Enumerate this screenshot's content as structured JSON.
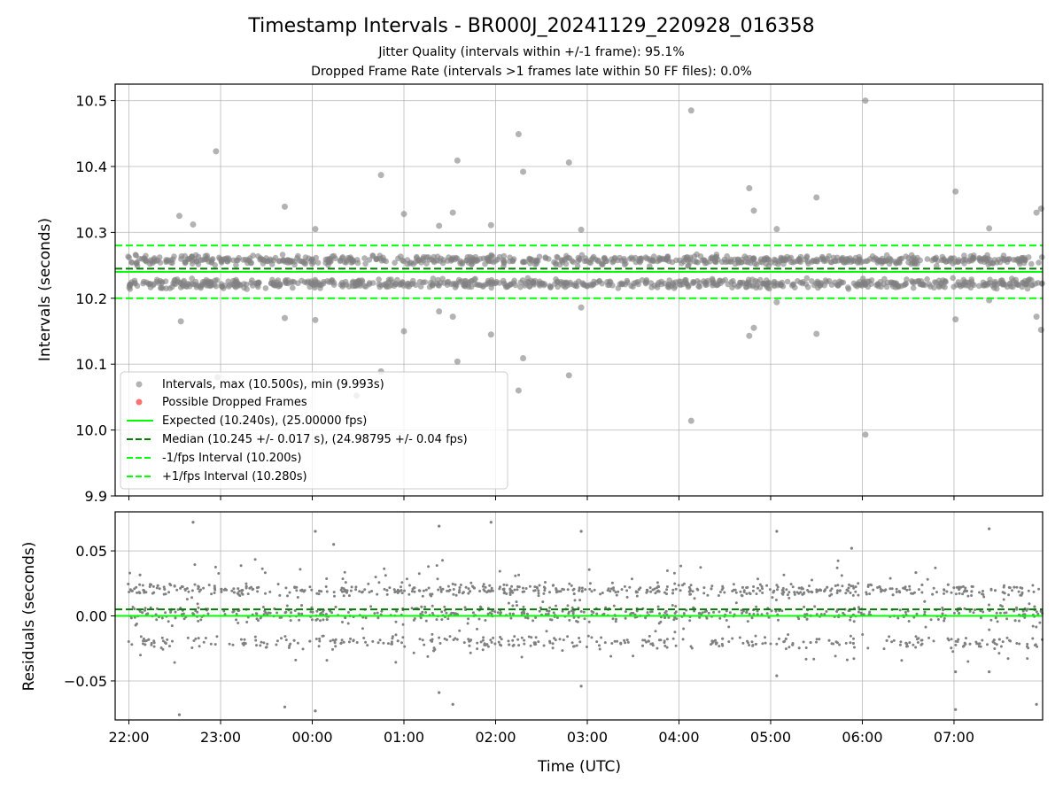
{
  "chart_data": [
    {
      "type": "scatter",
      "title": "Timestamp Intervals - BR000J_20241129_220928_016358",
      "subtitle": [
        "Jitter Quality (intervals within +/-1 frame): 95.1%",
        "Dropped Frame Rate (intervals >1 frames late within 50 FF files): 0.0%"
      ],
      "xlabel": "",
      "ylabel": "Intervals (seconds)",
      "xlim": [
        "2024-11-29 21:51",
        "2024-11-30 07:58"
      ],
      "ylim": [
        9.9,
        10.525
      ],
      "yticks": [
        9.9,
        10.0,
        10.1,
        10.2,
        10.3,
        10.4,
        10.5
      ],
      "ytick_labels": [
        "9.9",
        "10.0",
        "10.1",
        "10.2",
        "10.3",
        "10.4",
        "10.5"
      ],
      "grid": true,
      "legend_position": "lower-left",
      "band": {
        "min": 10.205,
        "max": 10.28
      },
      "series": [
        {
          "name": "Intervals, max (10.500s), min (9.993s)",
          "color": "#808080",
          "outliers": [
            {
              "x": "22:33",
              "y": 10.325
            },
            {
              "x": "22:34",
              "y": 10.165
            },
            {
              "x": "22:42",
              "y": 10.312
            },
            {
              "x": "22:57",
              "y": 10.423
            },
            {
              "x": "22:58",
              "y": 10.08
            },
            {
              "x": "23:42",
              "y": 10.339
            },
            {
              "x": "23:42",
              "y": 10.17
            },
            {
              "x": "00:02",
              "y": 10.305
            },
            {
              "x": "00:02",
              "y": 10.167
            },
            {
              "x": "00:29",
              "y": 10.052
            },
            {
              "x": "00:45",
              "y": 10.387
            },
            {
              "x": "00:45",
              "y": 10.089
            },
            {
              "x": "01:00",
              "y": 10.328
            },
            {
              "x": "01:00",
              "y": 10.15
            },
            {
              "x": "01:23",
              "y": 10.31
            },
            {
              "x": "01:23",
              "y": 10.18
            },
            {
              "x": "01:32",
              "y": 10.33
            },
            {
              "x": "01:32",
              "y": 10.172
            },
            {
              "x": "01:35",
              "y": 10.409
            },
            {
              "x": "01:35",
              "y": 10.104
            },
            {
              "x": "01:57",
              "y": 10.311
            },
            {
              "x": "01:57",
              "y": 10.145
            },
            {
              "x": "02:15",
              "y": 10.449
            },
            {
              "x": "02:15",
              "y": 10.06
            },
            {
              "x": "02:18",
              "y": 10.392
            },
            {
              "x": "02:18",
              "y": 10.109
            },
            {
              "x": "02:48",
              "y": 10.406
            },
            {
              "x": "02:48",
              "y": 10.083
            },
            {
              "x": "02:56",
              "y": 10.304
            },
            {
              "x": "02:56",
              "y": 10.186
            },
            {
              "x": "04:08",
              "y": 10.485
            },
            {
              "x": "04:08",
              "y": 10.014
            },
            {
              "x": "04:46",
              "y": 10.367
            },
            {
              "x": "04:46",
              "y": 10.143
            },
            {
              "x": "04:49",
              "y": 10.333
            },
            {
              "x": "04:49",
              "y": 10.155
            },
            {
              "x": "05:04",
              "y": 10.305
            },
            {
              "x": "05:04",
              "y": 10.194
            },
            {
              "x": "05:30",
              "y": 10.353
            },
            {
              "x": "05:30",
              "y": 10.146
            },
            {
              "x": "06:02",
              "y": 10.5
            },
            {
              "x": "06:02",
              "y": 9.993
            },
            {
              "x": "07:01",
              "y": 10.362
            },
            {
              "x": "07:01",
              "y": 10.168
            },
            {
              "x": "07:23",
              "y": 10.306
            },
            {
              "x": "07:23",
              "y": 10.197
            },
            {
              "x": "07:54",
              "y": 10.33
            },
            {
              "x": "07:54",
              "y": 10.172
            },
            {
              "x": "07:57",
              "y": 10.336
            },
            {
              "x": "07:57",
              "y": 10.152
            }
          ]
        },
        {
          "name": "Possible Dropped Frames",
          "color": "#ff6060",
          "points": []
        }
      ],
      "lines": [
        {
          "name": "Expected (10.240s), (25.00000 fps)",
          "y": 10.24,
          "color": "#00ff00",
          "style": "solid"
        },
        {
          "name": "Median (10.245 +/- 0.017 s), (24.98795 +/- 0.04 fps)",
          "y": 10.245,
          "color": "#008000",
          "style": "dashed"
        },
        {
          "name": "-1/fps Interval (10.200s)",
          "y": 10.2,
          "color": "#00ff00",
          "style": "dashed"
        },
        {
          "name": "+1/fps Interval (10.280s)",
          "y": 10.28,
          "color": "#00ff00",
          "style": "dashed"
        }
      ]
    },
    {
      "type": "scatter",
      "xlabel": "Time (UTC)",
      "ylabel": "Residuals (seconds)",
      "xlim": [
        "2024-11-29 21:51",
        "2024-11-30 07:58"
      ],
      "xticks": [
        "22:00",
        "23:00",
        "00:00",
        "01:00",
        "02:00",
        "03:00",
        "04:00",
        "05:00",
        "06:00",
        "07:00"
      ],
      "ylim": [
        -0.08,
        0.08
      ],
      "yticks": [
        -0.05,
        0.0,
        0.05
      ],
      "ytick_labels": [
        "−0.05",
        "0.00",
        "0.05"
      ],
      "grid": true,
      "band": {
        "min": -0.036,
        "max": 0.044
      },
      "series": [
        {
          "color": "#808080",
          "outliers": [
            {
              "x": "22:33",
              "y": -0.076
            },
            {
              "x": "22:42",
              "y": 0.072
            },
            {
              "x": "23:42",
              "y": -0.07
            },
            {
              "x": "00:02",
              "y": 0.065
            },
            {
              "x": "00:02",
              "y": -0.073
            },
            {
              "x": "00:14",
              "y": 0.055
            },
            {
              "x": "01:23",
              "y": 0.069
            },
            {
              "x": "01:23",
              "y": -0.059
            },
            {
              "x": "01:32",
              "y": -0.068
            },
            {
              "x": "01:57",
              "y": 0.072
            },
            {
              "x": "02:56",
              "y": 0.065
            },
            {
              "x": "02:56",
              "y": -0.054
            },
            {
              "x": "05:04",
              "y": 0.065
            },
            {
              "x": "05:04",
              "y": -0.046
            },
            {
              "x": "05:53",
              "y": 0.052
            },
            {
              "x": "07:01",
              "y": -0.043
            },
            {
              "x": "07:01",
              "y": -0.072
            },
            {
              "x": "07:23",
              "y": 0.067
            },
            {
              "x": "07:23",
              "y": -0.043
            },
            {
              "x": "07:54",
              "y": -0.068
            }
          ]
        }
      ],
      "lines": [
        {
          "y": 0.0,
          "color": "#00ff00",
          "style": "solid"
        },
        {
          "y": 0.005,
          "color": "#008000",
          "style": "dashed"
        }
      ]
    }
  ]
}
